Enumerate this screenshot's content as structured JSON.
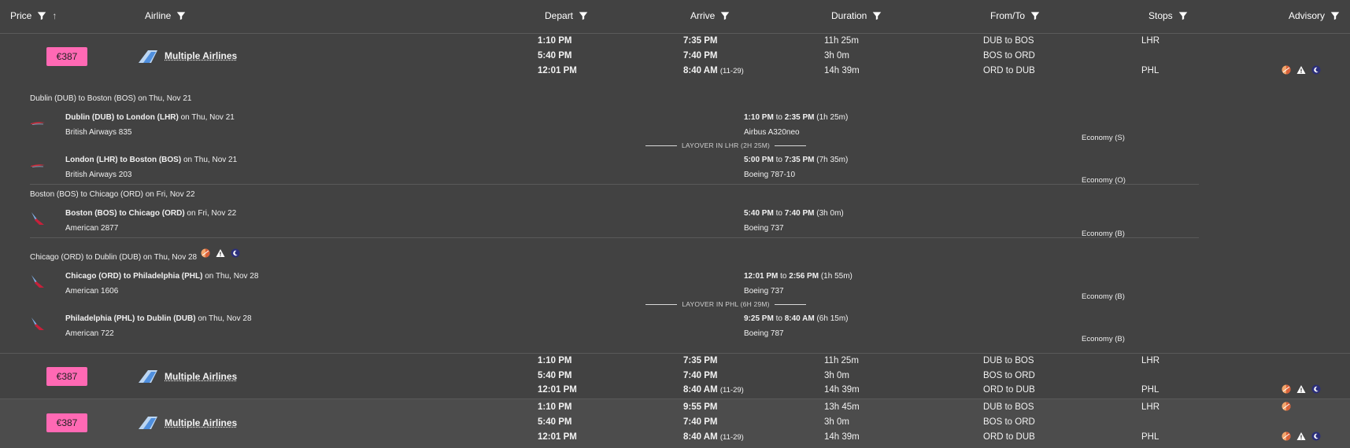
{
  "header": {
    "price": "Price",
    "airline": "Airline",
    "depart": "Depart",
    "arrive": "Arrive",
    "duration": "Duration",
    "fromto": "From/To",
    "stops": "Stops",
    "advisory": "Advisory"
  },
  "results": [
    {
      "price": "€387",
      "airline": "Multiple Airlines",
      "legs": [
        {
          "depart": "1:10 PM",
          "arrive": "7:35 PM",
          "arrive_note": "",
          "duration": "11h 25m",
          "fromto": "DUB to BOS",
          "stops": "LHR"
        },
        {
          "depart": "5:40 PM",
          "arrive": "7:40 PM",
          "arrive_note": "",
          "duration": "3h 0m",
          "fromto": "BOS to ORD",
          "stops": ""
        },
        {
          "depart": "12:01 PM",
          "arrive": "8:40 AM",
          "arrive_note": "(11-29)",
          "duration": "14h 39m",
          "fromto": "ORD to DUB",
          "stops": "PHL"
        }
      ]
    },
    {
      "price": "€387",
      "airline": "Multiple Airlines",
      "legs": [
        {
          "depart": "1:10 PM",
          "arrive": "7:35 PM",
          "arrive_note": "",
          "duration": "11h 25m",
          "fromto": "DUB to BOS",
          "stops": "LHR"
        },
        {
          "depart": "5:40 PM",
          "arrive": "7:40 PM",
          "arrive_note": "",
          "duration": "3h 0m",
          "fromto": "BOS to ORD",
          "stops": ""
        },
        {
          "depart": "12:01 PM",
          "arrive": "8:40 AM",
          "arrive_note": "(11-29)",
          "duration": "14h 39m",
          "fromto": "ORD to DUB",
          "stops": "PHL"
        }
      ]
    },
    {
      "price": "€387",
      "airline": "Multiple Airlines",
      "legs": [
        {
          "depart": "1:10 PM",
          "arrive": "9:55 PM",
          "arrive_note": "",
          "duration": "13h 45m",
          "fromto": "DUB to BOS",
          "stops": "LHR"
        },
        {
          "depart": "5:40 PM",
          "arrive": "7:40 PM",
          "arrive_note": "",
          "duration": "3h 0m",
          "fromto": "BOS to ORD",
          "stops": ""
        },
        {
          "depart": "12:01 PM",
          "arrive": "8:40 AM",
          "arrive_note": "(11-29)",
          "duration": "14h 39m",
          "fromto": "ORD to DUB",
          "stops": "PHL"
        }
      ]
    }
  ],
  "details": {
    "trip1_title": "Dublin (DUB) to Boston (BOS) on Thu, Nov 21",
    "seg1_route": "Dublin (DUB) to London (LHR)",
    "seg1_date": " on Thu, Nov 21",
    "seg1_flight": "British Airways 835",
    "seg1_dep": "1:10 PM",
    "seg1_arr": "2:35 PM",
    "seg1_dur": " (1h 25m)",
    "seg1_aircraft": "Airbus A320neo",
    "seg1_class": "Economy (S)",
    "layover1": "LAYOVER IN LHR (2H 25M)",
    "seg2_route": "London (LHR) to Boston (BOS)",
    "seg2_date": " on Thu, Nov 21",
    "seg2_flight": "British Airways 203",
    "seg2_dep": "5:00 PM",
    "seg2_arr": "7:35 PM",
    "seg2_dur": " (7h 35m)",
    "seg2_aircraft": "Boeing 787-10",
    "seg2_class": "Economy (O)",
    "trip2_title": "Boston (BOS) to Chicago (ORD) on Fri, Nov 22",
    "seg3_route": "Boston (BOS) to Chicago (ORD)",
    "seg3_date": " on Fri, Nov 22",
    "seg3_flight": "American 2877",
    "seg3_dep": "5:40 PM",
    "seg3_arr": "7:40 PM",
    "seg3_dur": " (3h 0m)",
    "seg3_aircraft": "Boeing 737",
    "seg3_class": "Economy (B)",
    "trip3_title": "Chicago (ORD) to Dublin (DUB) on Thu, Nov 28",
    "seg4_route": "Chicago (ORD) to Philadelphia (PHL)",
    "seg4_date": " on Thu, Nov 28",
    "seg4_flight": "American 1606",
    "seg4_dep": "12:01 PM",
    "seg4_arr": "2:56 PM",
    "seg4_dur": " (1h 55m)",
    "seg4_aircraft": "Boeing 737",
    "seg4_class": "Economy (B)",
    "layover2": "LAYOVER IN PHL (6H 29M)",
    "seg5_route": "Philadelphia (PHL) to Dublin (DUB)",
    "seg5_date": " on Thu, Nov 28",
    "seg5_flight": "American 722",
    "seg5_dep": "9:25 PM",
    "seg5_arr": "8:40 AM",
    "seg5_dur": " (6h 15m)",
    "seg5_aircraft": "Boeing 787",
    "seg5_class": "Economy (B)",
    "to": " to "
  },
  "colors": {
    "background": "#424242",
    "price_badge": "#ff69b4",
    "alt_row": "#4c4c4c"
  },
  "icons": [
    "filter-icon",
    "sort-up-icon",
    "airline-logo-icon",
    "daylight-icon",
    "warning-icon",
    "night-icon"
  ]
}
